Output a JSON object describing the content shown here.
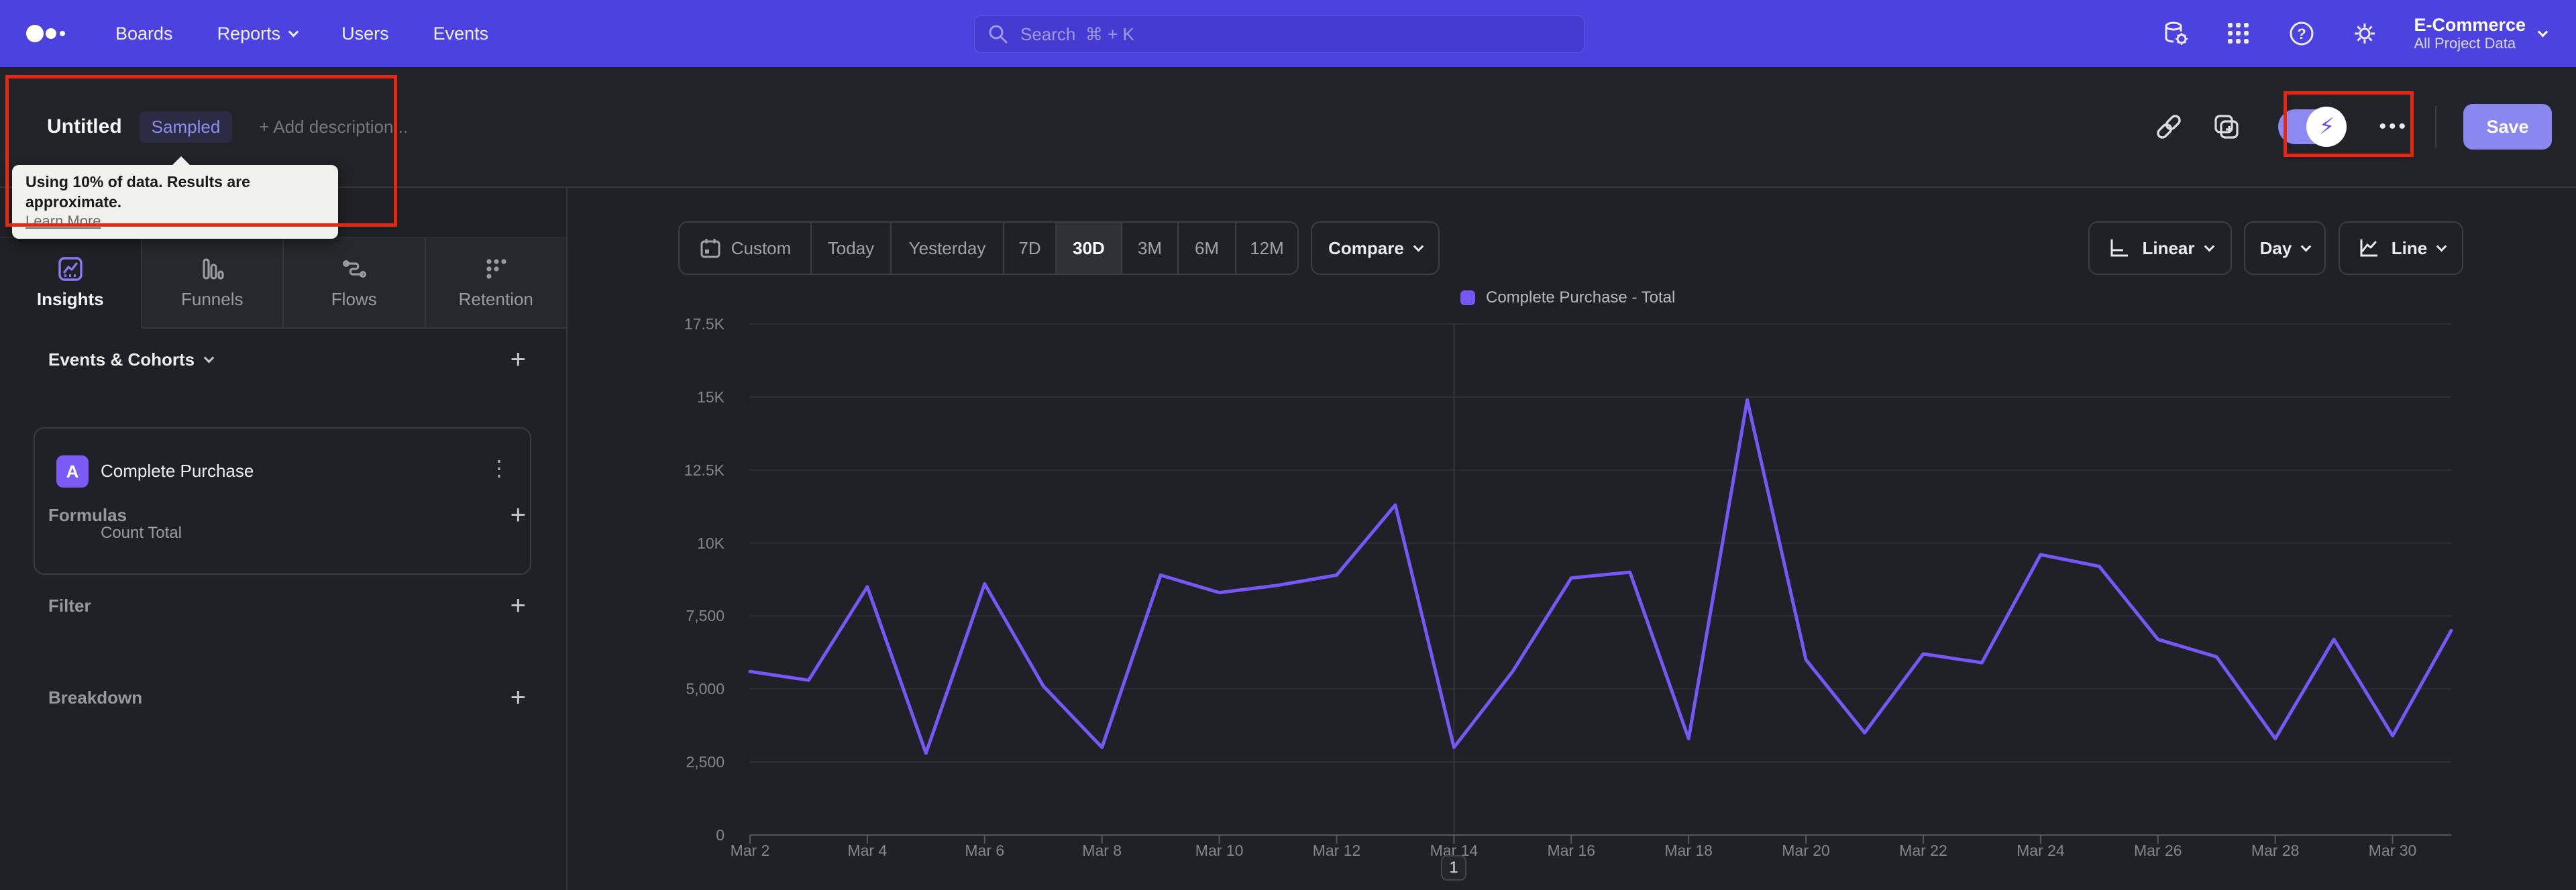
{
  "nav": {
    "items": [
      "Boards",
      "Reports",
      "Users",
      "Events"
    ],
    "search_placeholder": "Search  ⌘ + K",
    "project_name": "E-Commerce",
    "project_scope": "All Project Data"
  },
  "titlebar": {
    "title": "Untitled",
    "badge": "Sampled",
    "add_description": "+ Add description...",
    "more": "•••",
    "save_label": "Save"
  },
  "tooltip": {
    "line1": "Using 10% of data. Results are approximate.",
    "link": "Learn More"
  },
  "sidebar": {
    "tabs": [
      {
        "label": "Insights"
      },
      {
        "label": "Funnels"
      },
      {
        "label": "Flows"
      },
      {
        "label": "Retention"
      }
    ],
    "events_heading": "Events & Cohorts",
    "event": {
      "letter": "A",
      "name": "Complete Purchase",
      "metric": "Count Total",
      "kebab": "⋮"
    },
    "sections": [
      "Formulas",
      "Filter",
      "Breakdown"
    ]
  },
  "controls": {
    "ranges": [
      "Custom",
      "Today",
      "Yesterday",
      "7D",
      "30D",
      "3M",
      "6M",
      "12M"
    ],
    "active_range": "30D",
    "compare": "Compare",
    "scale": "Linear",
    "interval": "Day",
    "chart_type": "Line"
  },
  "pagination": "1",
  "chart_data": {
    "type": "line",
    "title": "",
    "x": [
      "Mar 2",
      "Mar 3",
      "Mar 4",
      "Mar 5",
      "Mar 6",
      "Mar 7",
      "Mar 8",
      "Mar 9",
      "Mar 10",
      "Mar 11",
      "Mar 12",
      "Mar 13",
      "Mar 14",
      "Mar 15",
      "Mar 16",
      "Mar 17",
      "Mar 18",
      "Mar 19",
      "Mar 20",
      "Mar 21",
      "Mar 22",
      "Mar 23",
      "Mar 24",
      "Mar 25",
      "Mar 26",
      "Mar 27",
      "Mar 28",
      "Mar 29",
      "Mar 30",
      "Mar 31"
    ],
    "series": [
      {
        "name": "Complete Purchase - Total",
        "color": "#7857f8",
        "values": [
          5600,
          5300,
          8500,
          2800,
          8600,
          5100,
          3000,
          8900,
          8300,
          8550,
          8900,
          11300,
          3000,
          5600,
          8800,
          9000,
          3300,
          14900,
          6000,
          3500,
          6200,
          5900,
          9600,
          9200,
          6700,
          6100,
          3300,
          6700,
          3400,
          7000
        ]
      }
    ],
    "ylim": [
      0,
      17500
    ],
    "y_tick_labels": [
      "0",
      "2,500",
      "5,000",
      "7,500",
      "10K",
      "12.5K",
      "15K",
      "17.5K"
    ],
    "x_tick_labels": [
      "Mar 2",
      "Mar 4",
      "Mar 6",
      "Mar 8",
      "Mar 10",
      "Mar 12",
      "Mar 14",
      "Mar 16",
      "Mar 18",
      "Mar 20",
      "Mar 22",
      "Mar 24",
      "Mar 26",
      "Mar 28",
      "Mar 30"
    ],
    "grid": "horizontal",
    "legend_position": "top-center",
    "marker_x": "Mar 14"
  },
  "colors": {
    "navbar": "#4b42df",
    "line": "#7857f8",
    "highlight": "#e7270e",
    "save_button": "#8b87f1",
    "grid": "#2e3035",
    "axis": "#55575d",
    "marker_line": "#34363b",
    "badge_purple": "#7b5af5"
  }
}
